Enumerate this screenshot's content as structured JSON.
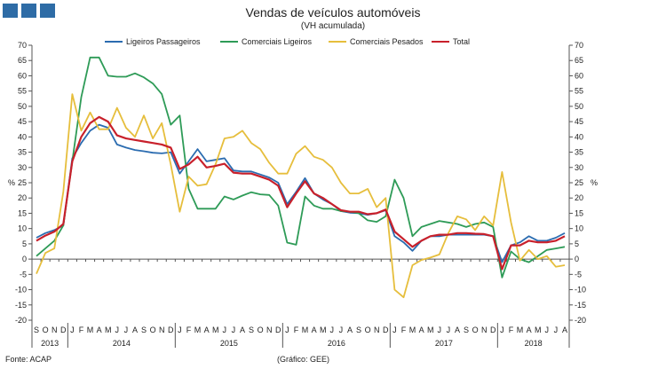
{
  "header": {
    "title": "Vendas de veículos automóveis",
    "subtitle": "(VH acumulada)"
  },
  "footer": {
    "source": "Fonte: ACAP",
    "graph": "(Gráfico: GEE)"
  },
  "chart_data": {
    "type": "line",
    "title": "Vendas de veículos automóveis",
    "subtitle": "(VH acumulada)",
    "ylabel_left": "%",
    "ylabel_right": "%",
    "ylim": [
      -20,
      70
    ],
    "yticks": [
      -20,
      -15,
      -10,
      -5,
      0,
      5,
      10,
      15,
      20,
      25,
      30,
      35,
      40,
      45,
      50,
      55,
      60,
      65,
      70
    ],
    "legend_position": "top",
    "grid": false,
    "x": [
      "S",
      "O",
      "N",
      "D",
      "J",
      "F",
      "M",
      "A",
      "M",
      "J",
      "J",
      "A",
      "S",
      "O",
      "N",
      "D",
      "J",
      "F",
      "M",
      "A",
      "M",
      "J",
      "J",
      "A",
      "S",
      "O",
      "N",
      "D",
      "J",
      "F",
      "M",
      "A",
      "M",
      "J",
      "J",
      "A",
      "S",
      "O",
      "N",
      "D",
      "J",
      "F",
      "M",
      "A",
      "M",
      "J",
      "J",
      "A",
      "S",
      "O",
      "N",
      "D",
      "J",
      "F",
      "M",
      "A",
      "M",
      "J",
      "J",
      "A"
    ],
    "year_groups": [
      {
        "label": "2013",
        "start": 0,
        "end": 3
      },
      {
        "label": "2014",
        "start": 4,
        "end": 15
      },
      {
        "label": "2015",
        "start": 16,
        "end": 27
      },
      {
        "label": "2016",
        "start": 28,
        "end": 39
      },
      {
        "label": "2017",
        "start": 40,
        "end": 51
      },
      {
        "label": "2018",
        "start": 52,
        "end": 59
      }
    ],
    "series": [
      {
        "name": "Ligeiros Passageiros",
        "color": "#2b6cb0",
        "values": [
          7,
          8.5,
          9.5,
          11,
          33,
          38,
          42,
          44,
          43,
          37.5,
          36.5,
          35.7,
          35.3,
          34.8,
          34.6,
          35,
          28,
          32,
          36,
          32,
          32.5,
          33,
          29,
          28.7,
          28.7,
          27.7,
          26.7,
          25,
          18,
          22,
          26.5,
          21.5,
          19.5,
          18,
          15.7,
          15.2,
          15,
          14.5,
          15,
          16,
          7.5,
          5.5,
          2.7,
          6,
          7.5,
          7.5,
          8,
          8,
          8,
          8,
          8,
          7.5,
          -1,
          4.5,
          5.5,
          7.5,
          6,
          6,
          7,
          8.5
        ]
      },
      {
        "name": "Comerciais Ligeiros",
        "color": "#2e9b57",
        "values": [
          1,
          3.5,
          6,
          11,
          32,
          53,
          66,
          66,
          60,
          59.7,
          59.7,
          60.8,
          59.5,
          57.5,
          54,
          44,
          47,
          23,
          16.5,
          16.5,
          16.5,
          20.5,
          19.5,
          20.8,
          21.9,
          21.2,
          21,
          17.5,
          5.4,
          4.7,
          20.5,
          17.5,
          16.5,
          16.5,
          15.7,
          15.5,
          15,
          12.7,
          12.2,
          14,
          26,
          20,
          7.5,
          10.5,
          11.5,
          12.5,
          12,
          11.5,
          10.5,
          11.5,
          12,
          10.5,
          -6,
          2.5,
          0,
          -1,
          1,
          3,
          3.5,
          4
        ]
      },
      {
        "name": "Comerciais Pesados",
        "color": "#e6be3c",
        "values": [
          -4.8,
          2,
          3.5,
          22,
          54,
          42,
          48,
          42.5,
          42.5,
          49.5,
          43,
          40,
          47,
          39.5,
          44.5,
          31,
          15.5,
          27,
          24,
          24.5,
          31,
          39.5,
          40,
          42,
          38,
          36,
          31.5,
          28,
          28,
          34.5,
          37,
          33.5,
          32.5,
          30,
          25,
          21.5,
          21.5,
          23,
          17,
          20,
          -10,
          -12.5,
          -2,
          -0.3,
          0.5,
          1.5,
          8.5,
          14,
          13,
          9.5,
          14,
          11,
          28.5,
          12,
          -0.5,
          3,
          0,
          1,
          -2.5,
          -2
        ]
      },
      {
        "name": "Total",
        "color": "#c8202b",
        "values": [
          6,
          7.7,
          9,
          11.5,
          32,
          40,
          44.5,
          46.5,
          45,
          40.5,
          39.5,
          39,
          38.5,
          38,
          37.5,
          36.5,
          29.5,
          31,
          33.5,
          30,
          30.5,
          31.2,
          28.3,
          28,
          28,
          27,
          26,
          24,
          17,
          21.5,
          25.5,
          21.5,
          20,
          18,
          16,
          15.5,
          15.5,
          14.7,
          15,
          16.2,
          9,
          6.5,
          4,
          6,
          7.5,
          8,
          8,
          8.5,
          8.5,
          8.3,
          8.2,
          7.5,
          -3.3,
          4.5,
          4.5,
          6,
          5.5,
          5.5,
          6,
          7.5
        ]
      }
    ]
  }
}
